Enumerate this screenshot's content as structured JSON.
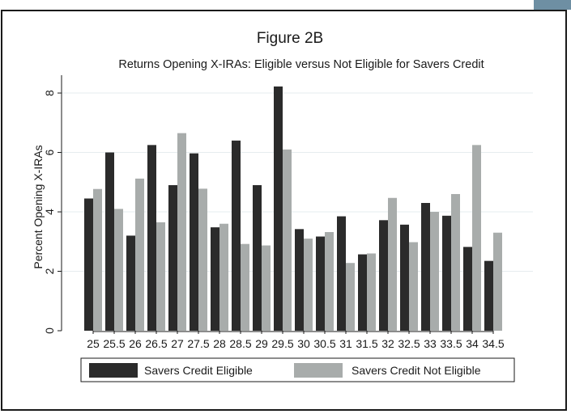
{
  "chart_data": {
    "type": "bar",
    "title": "Figure 2B",
    "subtitle": "Returns Opening X-IRAs: Eligible versus Not Eligible for Savers Credit",
    "xlabel": "",
    "ylabel": "Percent Opening X-IRAs",
    "ylim": [
      0,
      8.6
    ],
    "yticks": [
      0,
      2,
      4,
      6,
      8
    ],
    "grid": true,
    "legend_position": "bottom",
    "categories": [
      "25",
      "25.5",
      "26",
      "26.5",
      "27",
      "27.5",
      "28",
      "28.5",
      "29",
      "29.5",
      "30",
      "30.5",
      "31",
      "31.5",
      "32",
      "32.5",
      "33",
      "33.5",
      "34",
      "34.5"
    ],
    "series": [
      {
        "name": "Savers Credit Eligible",
        "color": "#2b2b2b",
        "values": [
          4.45,
          6.0,
          3.2,
          6.25,
          4.9,
          5.97,
          3.48,
          6.4,
          4.9,
          8.22,
          3.42,
          3.17,
          3.85,
          2.57,
          3.72,
          3.57,
          4.3,
          3.87,
          2.82,
          2.35
        ]
      },
      {
        "name": "Savers Credit Not Eligible",
        "color": "#a8acab",
        "values": [
          4.77,
          4.1,
          5.12,
          3.65,
          6.65,
          4.78,
          3.6,
          2.92,
          2.87,
          6.1,
          3.1,
          3.32,
          2.28,
          2.6,
          4.47,
          2.98,
          4.0,
          4.6,
          6.25,
          3.3
        ]
      }
    ]
  }
}
